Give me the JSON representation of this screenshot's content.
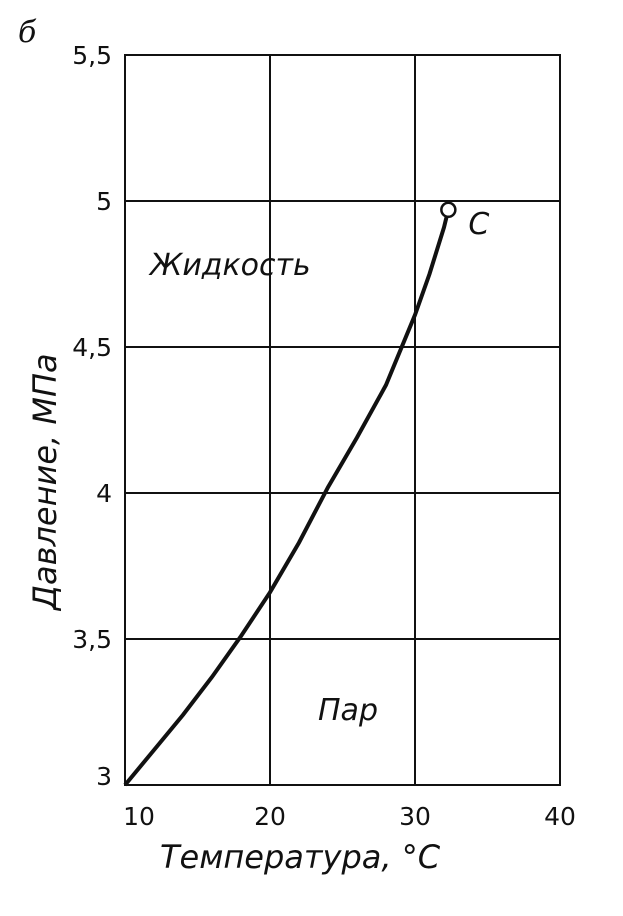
{
  "panel_label": "б",
  "chart_data": {
    "type": "line",
    "xlabel": "Температура, °С",
    "ylabel": "Давление, МПа",
    "x_ticks": [
      "10",
      "20",
      "30",
      "40"
    ],
    "y_ticks": [
      "3",
      "3,5",
      "4",
      "4,5",
      "5",
      "5,5"
    ],
    "xlim": [
      10,
      40
    ],
    "ylim": [
      3,
      5.5
    ],
    "grid": true,
    "series": [
      {
        "x": [
          10,
          12,
          14,
          16,
          18,
          20,
          22,
          24,
          26,
          28,
          30,
          31,
          32,
          32.3
        ],
        "y": [
          3.0,
          3.12,
          3.24,
          3.37,
          3.51,
          3.66,
          3.83,
          4.02,
          4.19,
          4.37,
          4.61,
          4.75,
          4.91,
          4.97
        ]
      }
    ],
    "critical_point": {
      "label": "С",
      "x": 32.3,
      "y": 4.97
    },
    "annotations": {
      "liquid": "Жидкость",
      "vapor": "Пар"
    }
  }
}
